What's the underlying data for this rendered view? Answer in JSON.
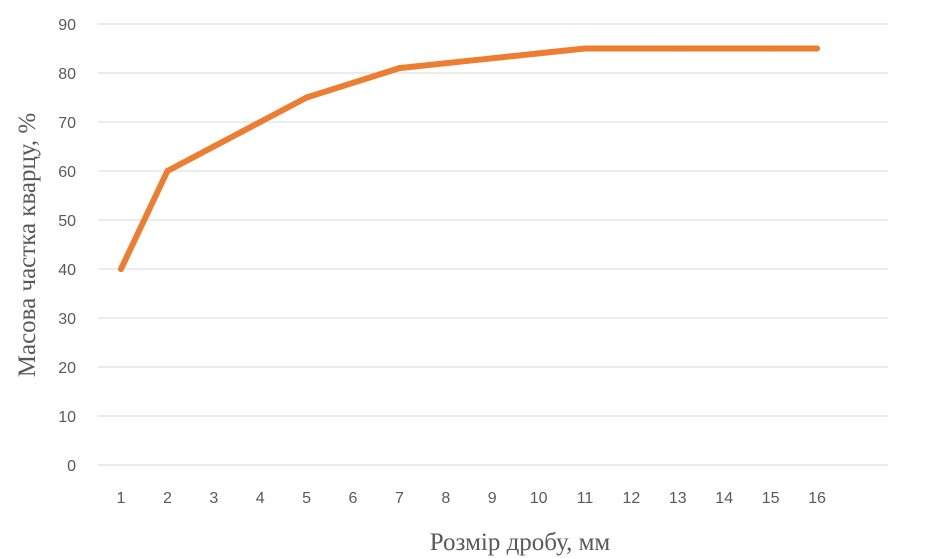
{
  "chart_data": {
    "type": "line",
    "title": "",
    "xlabel": "Розмір дробу, мм",
    "ylabel": "Масова частка кварцу, %",
    "categories": [
      "1",
      "2",
      "3",
      "4",
      "5",
      "6",
      "7",
      "8",
      "9",
      "10",
      "11",
      "12",
      "13",
      "14",
      "15",
      "16"
    ],
    "series": [
      {
        "values": [
          40,
          60,
          65,
          70,
          75,
          78,
          81,
          82,
          83,
          84,
          85,
          85,
          85,
          85,
          85,
          85
        ],
        "color": "#ED7D31"
      }
    ],
    "yticks": [
      "0",
      "10",
      "20",
      "30",
      "40",
      "50",
      "60",
      "70",
      "80",
      "90"
    ],
    "ylim": [
      0,
      90
    ],
    "grid": true,
    "gridColor": "#D9D9D9",
    "legend": "none"
  }
}
